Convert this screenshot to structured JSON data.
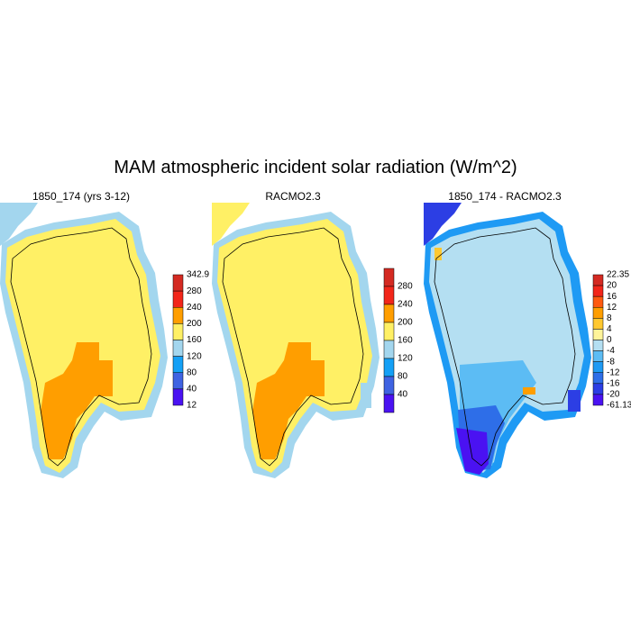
{
  "title": "MAM atmospheric incident solar radiation (W/m^2)",
  "panels": [
    {
      "title": "1850_174 (yrs 3-12)",
      "colorbar": {
        "labels": [
          "342.9",
          "280",
          "240",
          "200",
          "160",
          "120",
          "80",
          "40",
          "12"
        ],
        "colors": [
          "#d42a22",
          "#f2261a",
          "#ff9e00",
          "#fff065",
          "#a3d6ee",
          "#14a0f6",
          "#3f63e2",
          "#4a12f2"
        ]
      }
    },
    {
      "title": "RACMO2.3",
      "colorbar": {
        "labels": [
          "280",
          "240",
          "200",
          "160",
          "120",
          "80",
          "40"
        ],
        "colors": [
          "#d42a22",
          "#f2261a",
          "#ff9e00",
          "#fff065",
          "#a3d6ee",
          "#14a0f6",
          "#3f63e2",
          "#4a12f2"
        ]
      }
    },
    {
      "title": "1850_174 - RACMO2.3",
      "colorbar": {
        "labels": [
          "22.35",
          "20",
          "16",
          "12",
          "8",
          "4",
          "0",
          "-4",
          "-8",
          "-12",
          "-16",
          "-20",
          "-61.13"
        ],
        "colors": [
          "#d42a22",
          "#f2261a",
          "#ff5a10",
          "#ff9e00",
          "#ffc830",
          "#fff49a",
          "#b4dff2",
          "#5cbcf4",
          "#1e9af4",
          "#2e6ee8",
          "#2c3ee4",
          "#4a12f2"
        ]
      }
    }
  ]
}
